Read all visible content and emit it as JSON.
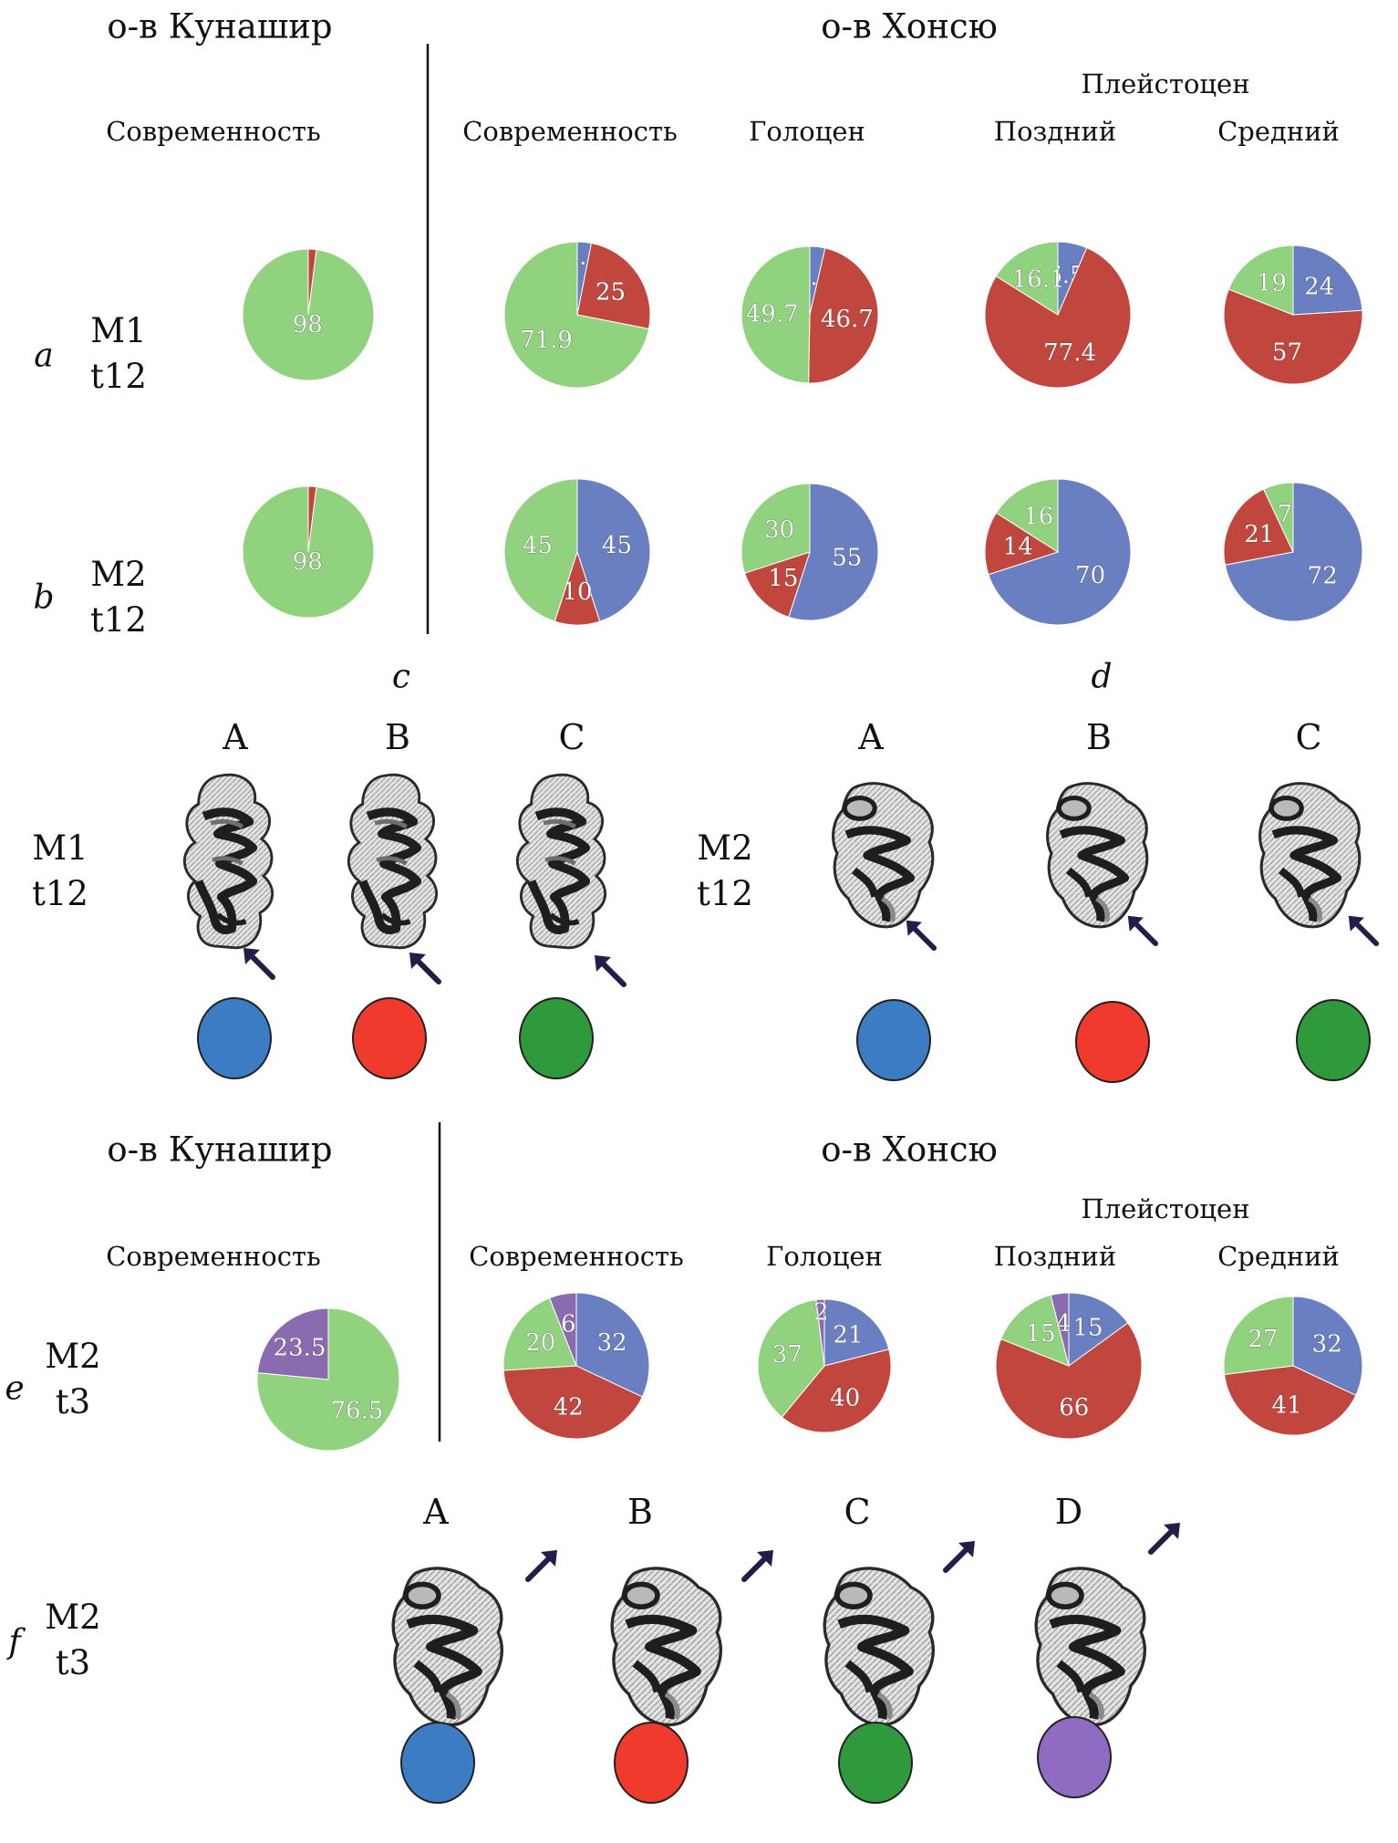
{
  "islands": {
    "kunashir": "о-в Кунашир",
    "honshu": "о-в Хонсю"
  },
  "periods": {
    "modern": "Современность",
    "holocene": "Голоцен",
    "pleistocene": "Плейстоцен",
    "late": "Поздний",
    "middle": "Средний"
  },
  "rows": {
    "a": {
      "letter": "a",
      "line1": "M1",
      "line2": "t12"
    },
    "b": {
      "letter": "b",
      "line1": "M2",
      "line2": "t12"
    },
    "e": {
      "letter": "e",
      "line1": "M2",
      "line2": "t3"
    },
    "f": {
      "letter": "f",
      "line1": "M2",
      "line2": "t3"
    },
    "c": {
      "line1": "M1",
      "line2": "t12"
    },
    "d": {
      "line1": "M2",
      "line2": "t12"
    }
  },
  "panel_letters": {
    "c": "c",
    "d": "d"
  },
  "morph_labels": [
    "A",
    "B",
    "C",
    "D"
  ],
  "colors": {
    "A": "#6a7fc1",
    "B": "#c0463e",
    "C": "#90d27e",
    "D": "#8a6bb0"
  },
  "legend_colors": {
    "A": "#3c7cc4",
    "B": "#f03a2e",
    "C": "#2e9a3c",
    "D": "#8f6cc2"
  },
  "chart_data": [
    {
      "type": "pie",
      "row": "a",
      "group": "Кунашир",
      "period": "Современность",
      "categories": [
        "B",
        "C"
      ],
      "values": [
        2,
        98
      ],
      "labels": [
        "",
        "98"
      ]
    },
    {
      "type": "pie",
      "row": "a",
      "group": "Хонсю",
      "period": "Современность",
      "categories": [
        "A",
        "B",
        "C"
      ],
      "values": [
        3.1,
        25,
        71.9
      ],
      "labels": [
        "3.1",
        "25",
        "71.9"
      ]
    },
    {
      "type": "pie",
      "row": "a",
      "group": "Хонсю",
      "period": "Голоцен",
      "categories": [
        "A",
        "B",
        "C"
      ],
      "values": [
        3.6,
        46.7,
        49.7
      ],
      "labels": [
        "3.6",
        "46.7",
        "49.7"
      ]
    },
    {
      "type": "pie",
      "row": "a",
      "group": "Хонсю",
      "period": "Поздний",
      "categories": [
        "A",
        "B",
        "C"
      ],
      "values": [
        6.5,
        77.4,
        16.1
      ],
      "labels": [
        "6.5",
        "77.4",
        "16.1"
      ]
    },
    {
      "type": "pie",
      "row": "a",
      "group": "Хонсю",
      "period": "Средний",
      "categories": [
        "A",
        "B",
        "C"
      ],
      "values": [
        24,
        57,
        19
      ],
      "labels": [
        "24",
        "57",
        "19"
      ]
    },
    {
      "type": "pie",
      "row": "b",
      "group": "Кунашир",
      "period": "Современность",
      "categories": [
        "B",
        "C"
      ],
      "values": [
        2,
        98
      ],
      "labels": [
        "",
        "98"
      ]
    },
    {
      "type": "pie",
      "row": "b",
      "group": "Хонсю",
      "period": "Современность",
      "categories": [
        "A",
        "B",
        "C"
      ],
      "values": [
        45,
        10,
        45
      ],
      "labels": [
        "45",
        "10",
        "45"
      ]
    },
    {
      "type": "pie",
      "row": "b",
      "group": "Хонсю",
      "period": "Голоцен",
      "categories": [
        "A",
        "B",
        "C"
      ],
      "values": [
        55,
        15,
        30
      ],
      "labels": [
        "55",
        "15",
        "30"
      ]
    },
    {
      "type": "pie",
      "row": "b",
      "group": "Хонсю",
      "period": "Поздний",
      "categories": [
        "A",
        "B",
        "C"
      ],
      "values": [
        70,
        14,
        16
      ],
      "labels": [
        "70",
        "14",
        "16"
      ]
    },
    {
      "type": "pie",
      "row": "b",
      "group": "Хонсю",
      "period": "Средний",
      "categories": [
        "A",
        "B",
        "C"
      ],
      "values": [
        72,
        21,
        7
      ],
      "labels": [
        "72",
        "21",
        "7"
      ]
    },
    {
      "type": "pie",
      "row": "e",
      "group": "Кунашир",
      "period": "Современность",
      "categories": [
        "C",
        "D"
      ],
      "values": [
        76.5,
        23.5
      ],
      "labels": [
        "76.5",
        "23.5"
      ]
    },
    {
      "type": "pie",
      "row": "e",
      "group": "Хонсю",
      "period": "Современность",
      "categories": [
        "A",
        "B",
        "C",
        "D"
      ],
      "values": [
        32,
        42,
        20,
        6
      ],
      "labels": [
        "32",
        "42",
        "20",
        "6"
      ]
    },
    {
      "type": "pie",
      "row": "e",
      "group": "Хонсю",
      "period": "Голоцен",
      "categories": [
        "A",
        "B",
        "C",
        "D"
      ],
      "values": [
        21,
        40,
        37,
        2
      ],
      "labels": [
        "21",
        "40",
        "37",
        "2"
      ]
    },
    {
      "type": "pie",
      "row": "e",
      "group": "Хонсю",
      "period": "Поздний",
      "categories": [
        "A",
        "B",
        "C",
        "D"
      ],
      "values": [
        15,
        66,
        15,
        4
      ],
      "labels": [
        "15",
        "66",
        "15",
        "4"
      ]
    },
    {
      "type": "pie",
      "row": "e",
      "group": "Хонсю",
      "period": "Средний",
      "categories": [
        "A",
        "B",
        "C"
      ],
      "values": [
        32,
        41,
        27
      ],
      "labels": [
        "32",
        "41",
        "27"
      ]
    }
  ]
}
